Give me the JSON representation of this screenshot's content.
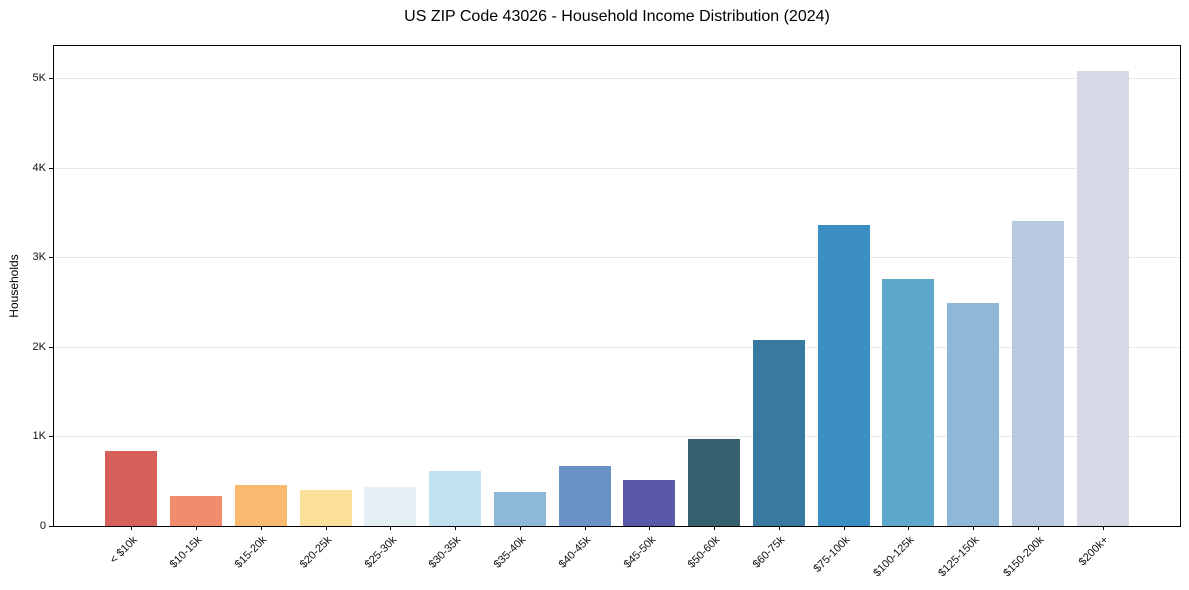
{
  "title": "US ZIP Code 43026 - Household Income Distribution (2024)",
  "chart_data": {
    "type": "bar",
    "title": "US ZIP Code 43026 - Household Income Distribution (2024)",
    "xlabel": "",
    "ylabel": "Households",
    "categories": [
      "< $10k",
      "$10-15k",
      "$15-20k",
      "$20-25k",
      "$25-30k",
      "$30-35k",
      "$35-40k",
      "$40-45k",
      "$45-50k",
      "$50-60k",
      "$60-75k",
      "$75-100k",
      "$100-125k",
      "$125-150k",
      "$150-200k",
      "$200k+"
    ],
    "values": [
      840,
      330,
      455,
      400,
      440,
      610,
      375,
      665,
      515,
      975,
      2075,
      3360,
      2755,
      2490,
      3405,
      5080
    ],
    "bar_colors": [
      "#d75f5b",
      "#f28c6e",
      "#f9ba70",
      "#fbe09c",
      "#e6f0f4",
      "#c0e1ed",
      "#8db8d8",
      "#6b92c5",
      "#5b58a8",
      "#37606f",
      "#38799f",
      "#3a8ec4",
      "#5fa8c9",
      "#90b7d6",
      "#b8c8df",
      "#d7d9e7"
    ],
    "yticks": [
      {
        "value": 0,
        "label": "0"
      },
      {
        "value": 1000,
        "label": "1K"
      },
      {
        "value": 2000,
        "label": "2K"
      },
      {
        "value": 3000,
        "label": "3K"
      },
      {
        "value": 4000,
        "label": "4K"
      },
      {
        "value": 5000,
        "label": "5K"
      }
    ],
    "ylim": [
      0,
      5356
    ],
    "grid": "horizontal",
    "grid_color": "#e9e9e9",
    "legend": "none",
    "background": "#ffffff",
    "spine_color": "#000000"
  }
}
